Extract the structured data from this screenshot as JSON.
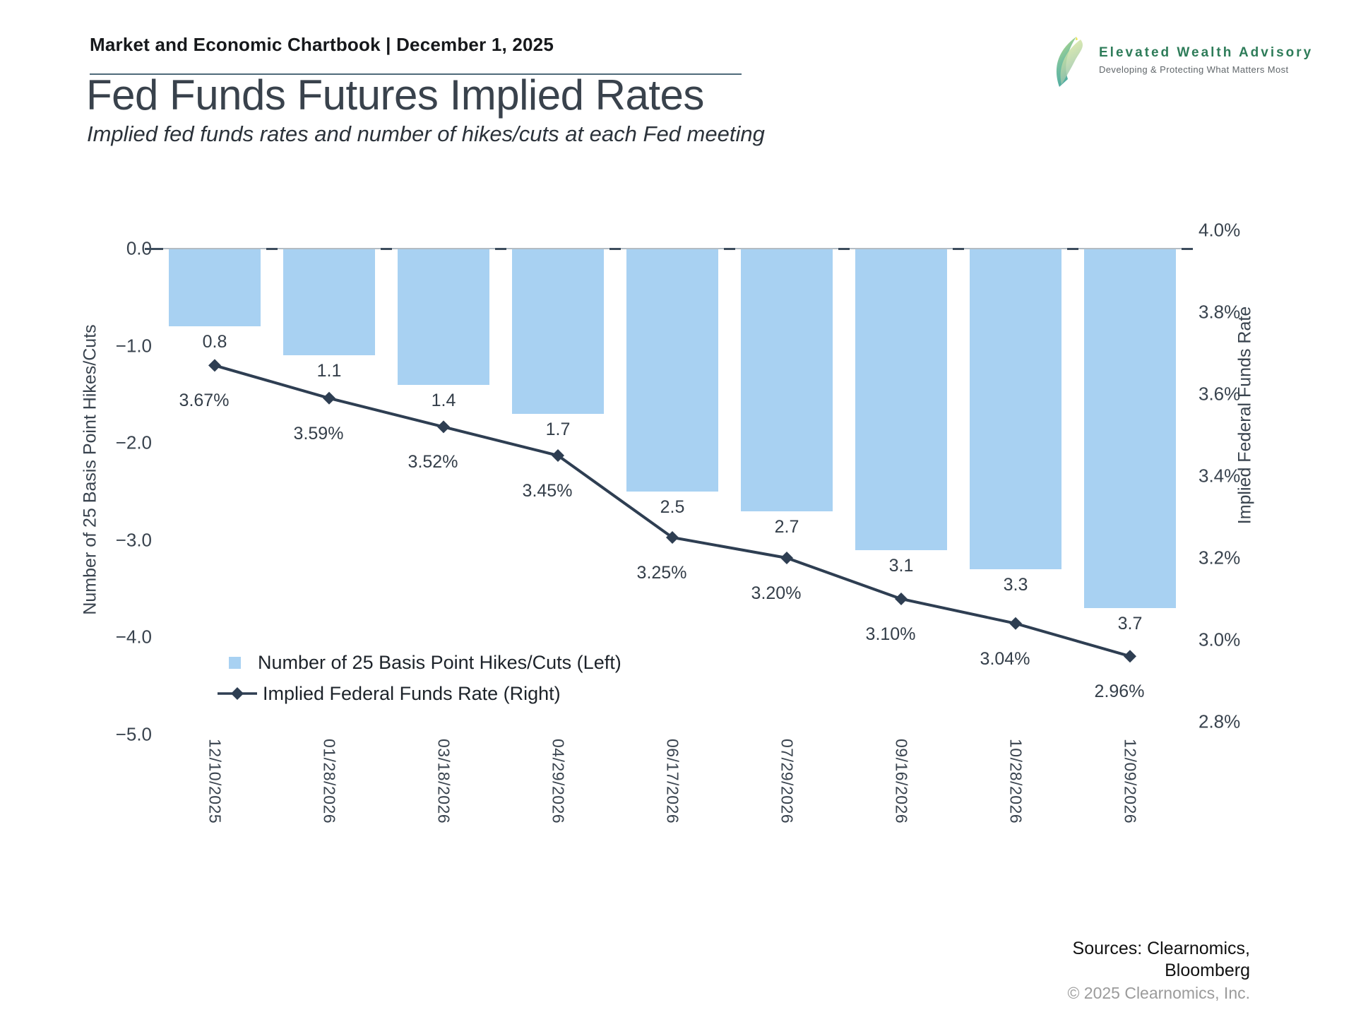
{
  "header": {
    "title": "Market and Economic Chartbook | December 1, 2025"
  },
  "logo": {
    "name": "Elevated Wealth Advisory",
    "tagline": "Developing & Protecting What Matters Most",
    "accent_green": "#2e7c59"
  },
  "page": {
    "title": "Fed Funds Futures Implied Rates",
    "subtitle": "Implied fed funds rates and number of hikes/cuts at each Fed meeting"
  },
  "chart_data": {
    "type": "bar+line",
    "categories": [
      "12/10/2025",
      "01/28/2026",
      "03/18/2026",
      "04/29/2026",
      "06/17/2026",
      "07/29/2026",
      "09/16/2026",
      "10/28/2026",
      "12/09/2026"
    ],
    "series": [
      {
        "name": "Number of 25 Basis Point Hikes/Cuts (Left)",
        "type": "bar",
        "axis": "left",
        "values": [
          -0.8,
          -1.1,
          -1.4,
          -1.7,
          -2.5,
          -2.7,
          -3.1,
          -3.3,
          -3.7
        ],
        "labels": [
          "0.8",
          "1.1",
          "1.4",
          "1.7",
          "2.5",
          "2.7",
          "3.1",
          "3.3",
          "3.7"
        ],
        "color": "#a8d1f2"
      },
      {
        "name": "Implied Federal Funds Rate (Right)",
        "type": "line",
        "axis": "right",
        "values": [
          3.67,
          3.59,
          3.52,
          3.45,
          3.25,
          3.2,
          3.1,
          3.04,
          2.96
        ],
        "labels": [
          "3.67%",
          "3.59%",
          "3.52%",
          "3.45%",
          "3.25%",
          "3.20%",
          "3.10%",
          "3.04%",
          "2.96%"
        ],
        "color": "#2e3e52",
        "marker": "diamond"
      }
    ],
    "left_axis": {
      "label": "Number of 25 Basis Point Hikes/Cuts",
      "tick_values": [
        0,
        -1,
        -2,
        -3,
        -4,
        -5
      ],
      "tick_labels": [
        "0.0",
        "−1.0",
        "−2.0",
        "−3.0",
        "−4.0",
        "−5.0"
      ],
      "range": [
        0,
        -5
      ]
    },
    "right_axis": {
      "label": "Implied Federal Funds Rate",
      "tick_values": [
        4.0,
        3.8,
        3.6,
        3.4,
        3.2,
        3.0,
        2.8
      ],
      "tick_labels": [
        "4.0%",
        "3.8%",
        "3.6%",
        "3.4%",
        "3.2%",
        "3.0%",
        "2.8%"
      ],
      "range": [
        4.0,
        2.8
      ]
    },
    "legend": [
      "Number of 25 Basis Point Hikes/Cuts (Left)",
      "Implied Federal Funds Rate (Right)"
    ],
    "legend_position": "lower-left-inside",
    "grid": false
  },
  "footer": {
    "sources_line1": "Sources: Clearnomics,",
    "sources_line2": "Bloomberg",
    "copyright": "© 2025 Clearnomics, Inc."
  }
}
